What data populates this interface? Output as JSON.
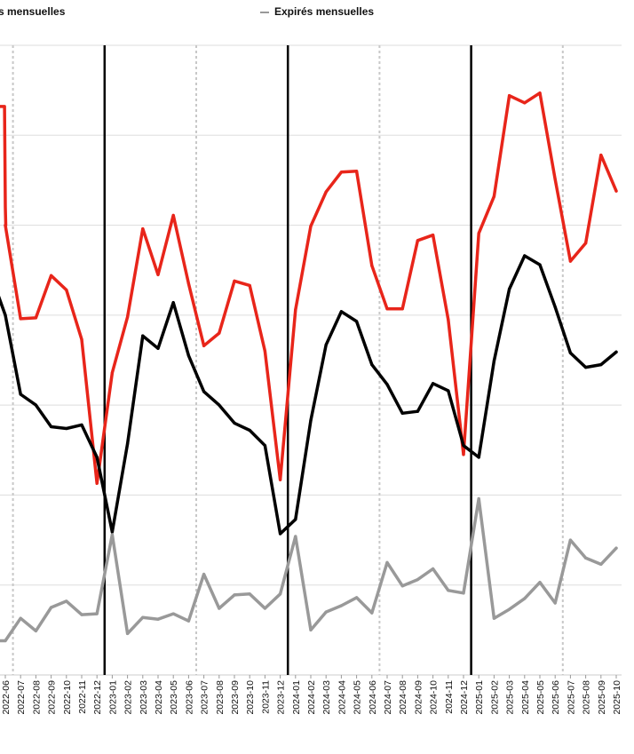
{
  "legend": {
    "left_label": "s mensuelles",
    "right_label": "Expirés mensuelles",
    "right_color": "#999999"
  },
  "chart_data": {
    "type": "line",
    "x": [
      "2022-06",
      "2022-07",
      "2022-08",
      "2022-09",
      "2022-10",
      "2022-11",
      "2022-12",
      "2023-01",
      "2023-02",
      "2023-03",
      "2023-04",
      "2023-05",
      "2023-06",
      "2023-07",
      "2023-08",
      "2023-09",
      "2023-10",
      "2023-11",
      "2023-12",
      "2024-01",
      "2024-02",
      "2024-03",
      "2024-04",
      "2024-05",
      "2024-06",
      "2024-07",
      "2024-08",
      "2024-09",
      "2024-10",
      "2024-11",
      "2024-12",
      "2025-01",
      "2025-02",
      "2025-03",
      "2025-04",
      "2025-05",
      "2025-06",
      "2025-07",
      "2025-08",
      "2025-09",
      "2025-10"
    ],
    "ylim": [
      0,
      7
    ],
    "grid": true,
    "legend_position": "top",
    "year_separators": [
      "2023-01",
      "2024-01",
      "2025-01"
    ],
    "quarter_markers": [
      "2022-07",
      "2023-07",
      "2024-07",
      "2025-07"
    ],
    "series": [
      {
        "color": "#e8251a",
        "values": [
          5.0,
          3.96,
          3.97,
          4.44,
          4.28,
          3.73,
          2.13,
          3.36,
          3.98,
          4.96,
          4.45,
          5.11,
          4.35,
          3.66,
          3.8,
          4.38,
          4.33,
          3.6,
          2.17,
          4.06,
          4.99,
          5.37,
          5.59,
          5.6,
          4.55,
          4.07,
          4.07,
          4.83,
          4.89,
          3.95,
          2.45,
          4.91,
          5.32,
          6.44,
          6.36,
          6.47,
          5.51,
          4.6,
          4.8,
          5.78,
          5.38
        ],
        "prefix_x": [
          -0.95,
          -0.05,
          0.0,
          0.03
        ],
        "prefix_values": [
          6.32,
          6.32,
          5.2,
          5.0
        ]
      },
      {
        "color": "#000000",
        "values": [
          4.0,
          3.12,
          3.0,
          2.76,
          2.74,
          2.78,
          2.42,
          1.59,
          2.57,
          3.77,
          3.63,
          4.14,
          3.55,
          3.15,
          3.0,
          2.8,
          2.72,
          2.55,
          1.57,
          1.73,
          2.83,
          3.67,
          4.04,
          3.93,
          3.45,
          3.23,
          2.91,
          2.93,
          3.24,
          3.16,
          2.55,
          2.42,
          3.49,
          4.29,
          4.66,
          4.56,
          4.09,
          3.58,
          3.42,
          3.45,
          3.59
        ],
        "prefix_x": [
          -0.95
        ],
        "prefix_values": [
          4.45
        ]
      },
      {
        "name": "Expirés mensuelles",
        "color": "#999999",
        "values": [
          0.38,
          0.63,
          0.49,
          0.75,
          0.82,
          0.67,
          0.68,
          1.56,
          0.46,
          0.64,
          0.62,
          0.68,
          0.6,
          1.12,
          0.74,
          0.89,
          0.9,
          0.74,
          0.9,
          1.54,
          0.5,
          0.7,
          0.77,
          0.86,
          0.69,
          1.25,
          0.99,
          1.06,
          1.18,
          0.94,
          0.91,
          1.96,
          0.63,
          0.73,
          0.85,
          1.03,
          0.8,
          1.5,
          1.3,
          1.23,
          1.41
        ],
        "prefix_x": [
          -0.95
        ],
        "prefix_values": [
          0.38
        ]
      }
    ]
  }
}
